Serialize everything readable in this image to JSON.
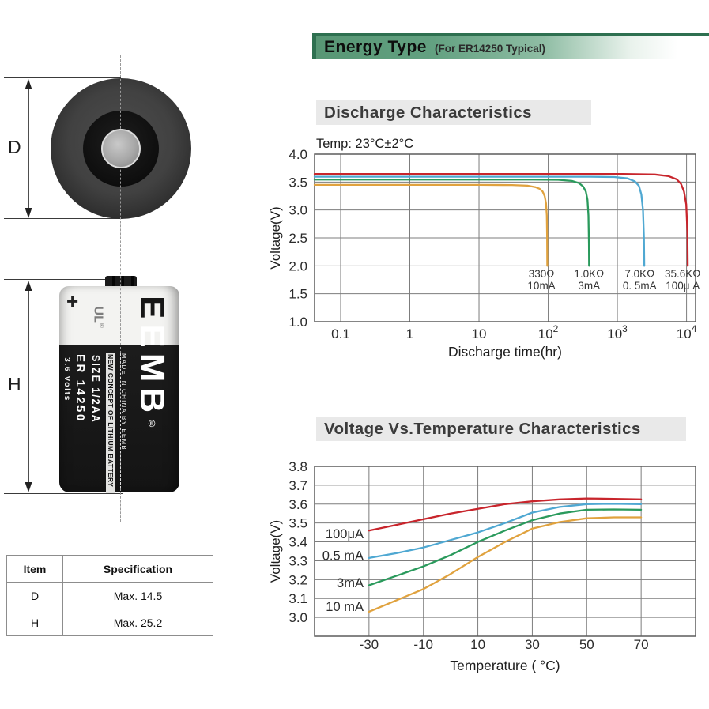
{
  "header": {
    "title": "Energy Type",
    "subtitle": "(For ER14250 Typical)",
    "accent_green": "#2e7050"
  },
  "left_panel": {
    "dim_labels": {
      "d": "D",
      "h": "H"
    },
    "battery": {
      "plus": "+",
      "ul": "UL",
      "reg": "®",
      "logo_first_letter": "E",
      "logo_rest": "EMB",
      "model": "ER 14250",
      "size": "SIZE 1/2AA",
      "volts": "3.6 Volts",
      "made_in": "MADE IN CHINA BY EEMB",
      "concept": "NEW CONCEPT OF LITHIUM BATTERY"
    },
    "spec_table": {
      "headers": [
        "Item",
        "Specification"
      ],
      "rows": [
        [
          "D",
          "Max. 14.5"
        ],
        [
          "H",
          "Max. 25.2"
        ]
      ]
    }
  },
  "chart_data": [
    {
      "type": "line",
      "title": "Discharge Characteristics",
      "note": "Temp: 23°C±2°C",
      "xlabel": "Discharge time(hr)",
      "ylabel": "Voltage(V)",
      "x_scale": "log",
      "xlim": [
        0.042,
        13500
      ],
      "ylim": [
        1.0,
        4.0
      ],
      "grid": true,
      "y_ticks": [
        4.0,
        3.5,
        3.0,
        2.5,
        2.0,
        1.5,
        1.0
      ],
      "x_ticks": [
        {
          "v": 0.1,
          "label": "0.1"
        },
        {
          "v": 1,
          "label": "1"
        },
        {
          "v": 10,
          "label": "10"
        },
        {
          "v": 100,
          "label": "10",
          "exp": "2"
        },
        {
          "v": 1000,
          "label": "10",
          "exp": "3"
        },
        {
          "v": 10000,
          "label": "10",
          "exp": "4"
        }
      ],
      "series": [
        {
          "name": "330Ω 10mA",
          "color": "#e0a23e",
          "points": [
            [
              0.042,
              3.45
            ],
            [
              10,
              3.45
            ],
            [
              30,
              3.447
            ],
            [
              50,
              3.435
            ],
            [
              65,
              3.41
            ],
            [
              75,
              3.38
            ],
            [
              83,
              3.33
            ],
            [
              89,
              3.25
            ],
            [
              93,
              3.12
            ],
            [
              95.5,
              2.9
            ],
            [
              96.5,
              2.5
            ],
            [
              97,
              2.0
            ]
          ]
        },
        {
          "name": "1.0KΩ 3mA",
          "color": "#2a9a5c",
          "points": [
            [
              0.042,
              3.545
            ],
            [
              60,
              3.545
            ],
            [
              140,
              3.54
            ],
            [
              220,
              3.52
            ],
            [
              280,
              3.48
            ],
            [
              320,
              3.42
            ],
            [
              350,
              3.33
            ],
            [
              370,
              3.18
            ],
            [
              382,
              2.9
            ],
            [
              388,
              2.4
            ],
            [
              390,
              2.0
            ]
          ]
        },
        {
          "name": "7.0KΩ 0.5mA",
          "color": "#4fa8d2",
          "points": [
            [
              0.042,
              3.595
            ],
            [
              400,
              3.595
            ],
            [
              900,
              3.59
            ],
            [
              1400,
              3.565
            ],
            [
              1800,
              3.51
            ],
            [
              2050,
              3.43
            ],
            [
              2220,
              3.28
            ],
            [
              2350,
              3.0
            ],
            [
              2420,
              2.5
            ],
            [
              2450,
              2.0
            ]
          ]
        },
        {
          "name": "35.6KΩ 100μA",
          "color": "#c8252c",
          "points": [
            [
              0.042,
              3.645
            ],
            [
              1200,
              3.645
            ],
            [
              3500,
              3.635
            ],
            [
              5500,
              3.605
            ],
            [
              7200,
              3.55
            ],
            [
              8300,
              3.47
            ],
            [
              9200,
              3.33
            ],
            [
              9900,
              3.1
            ],
            [
              10300,
              2.6
            ],
            [
              10400,
              2.0
            ]
          ]
        }
      ],
      "annotations": [
        {
          "x": 80,
          "y": 1.79,
          "lines": [
            "330Ω",
            "10mA"
          ]
        },
        {
          "x": 390,
          "y": 1.79,
          "lines": [
            "1.0KΩ",
            "3mA"
          ]
        },
        {
          "x": 2100,
          "y": 1.79,
          "lines": [
            "7.0KΩ",
            "0. 5mA"
          ]
        },
        {
          "x": 8800,
          "y": 1.79,
          "lines": [
            "35.6KΩ",
            "100μ A"
          ]
        }
      ]
    },
    {
      "type": "line",
      "title": "Voltage Vs.Temperature Characteristics",
      "xlabel": "Temperature ( °C)",
      "ylabel": "Voltage(V)",
      "x_scale": "linear",
      "xlim": [
        -50,
        90
      ],
      "ylim": [
        2.9,
        3.8
      ],
      "grid": true,
      "y_ticks": [
        3.8,
        3.7,
        3.6,
        3.5,
        3.4,
        3.3,
        3.2,
        3.1,
        3.0
      ],
      "x_ticks": [
        -30,
        -10,
        10,
        30,
        50,
        70
      ],
      "series": [
        {
          "name": "100μA",
          "color": "#c8252c",
          "label_pos": {
            "x": -32,
            "y": 3.445
          },
          "points": [
            [
              -30,
              3.46
            ],
            [
              -20,
              3.49
            ],
            [
              -10,
              3.52
            ],
            [
              0,
              3.55
            ],
            [
              10,
              3.575
            ],
            [
              20,
              3.6
            ],
            [
              30,
              3.615
            ],
            [
              40,
              3.625
            ],
            [
              50,
              3.63
            ],
            [
              60,
              3.628
            ],
            [
              70,
              3.625
            ]
          ]
        },
        {
          "name": "0.5 mA",
          "color": "#4fa8d2",
          "label_pos": {
            "x": -32,
            "y": 3.33
          },
          "points": [
            [
              -30,
              3.315
            ],
            [
              -20,
              3.34
            ],
            [
              -10,
              3.37
            ],
            [
              0,
              3.41
            ],
            [
              10,
              3.45
            ],
            [
              20,
              3.5
            ],
            [
              30,
              3.555
            ],
            [
              40,
              3.585
            ],
            [
              50,
              3.6
            ],
            [
              60,
              3.602
            ],
            [
              70,
              3.6
            ]
          ]
        },
        {
          "name": "3mA",
          "color": "#2a9a5c",
          "label_pos": {
            "x": -32,
            "y": 3.185
          },
          "points": [
            [
              -30,
              3.17
            ],
            [
              -20,
              3.22
            ],
            [
              -10,
              3.27
            ],
            [
              0,
              3.33
            ],
            [
              10,
              3.4
            ],
            [
              20,
              3.46
            ],
            [
              30,
              3.515
            ],
            [
              40,
              3.55
            ],
            [
              50,
              3.57
            ],
            [
              60,
              3.572
            ],
            [
              70,
              3.57
            ]
          ]
        },
        {
          "name": "10 mA",
          "color": "#e0a23e",
          "label_pos": {
            "x": -32,
            "y": 3.06
          },
          "points": [
            [
              -30,
              3.03
            ],
            [
              -20,
              3.09
            ],
            [
              -10,
              3.15
            ],
            [
              0,
              3.23
            ],
            [
              10,
              3.32
            ],
            [
              20,
              3.4
            ],
            [
              30,
              3.47
            ],
            [
              40,
              3.505
            ],
            [
              50,
              3.525
            ],
            [
              60,
              3.53
            ],
            [
              70,
              3.53
            ]
          ]
        }
      ]
    }
  ]
}
